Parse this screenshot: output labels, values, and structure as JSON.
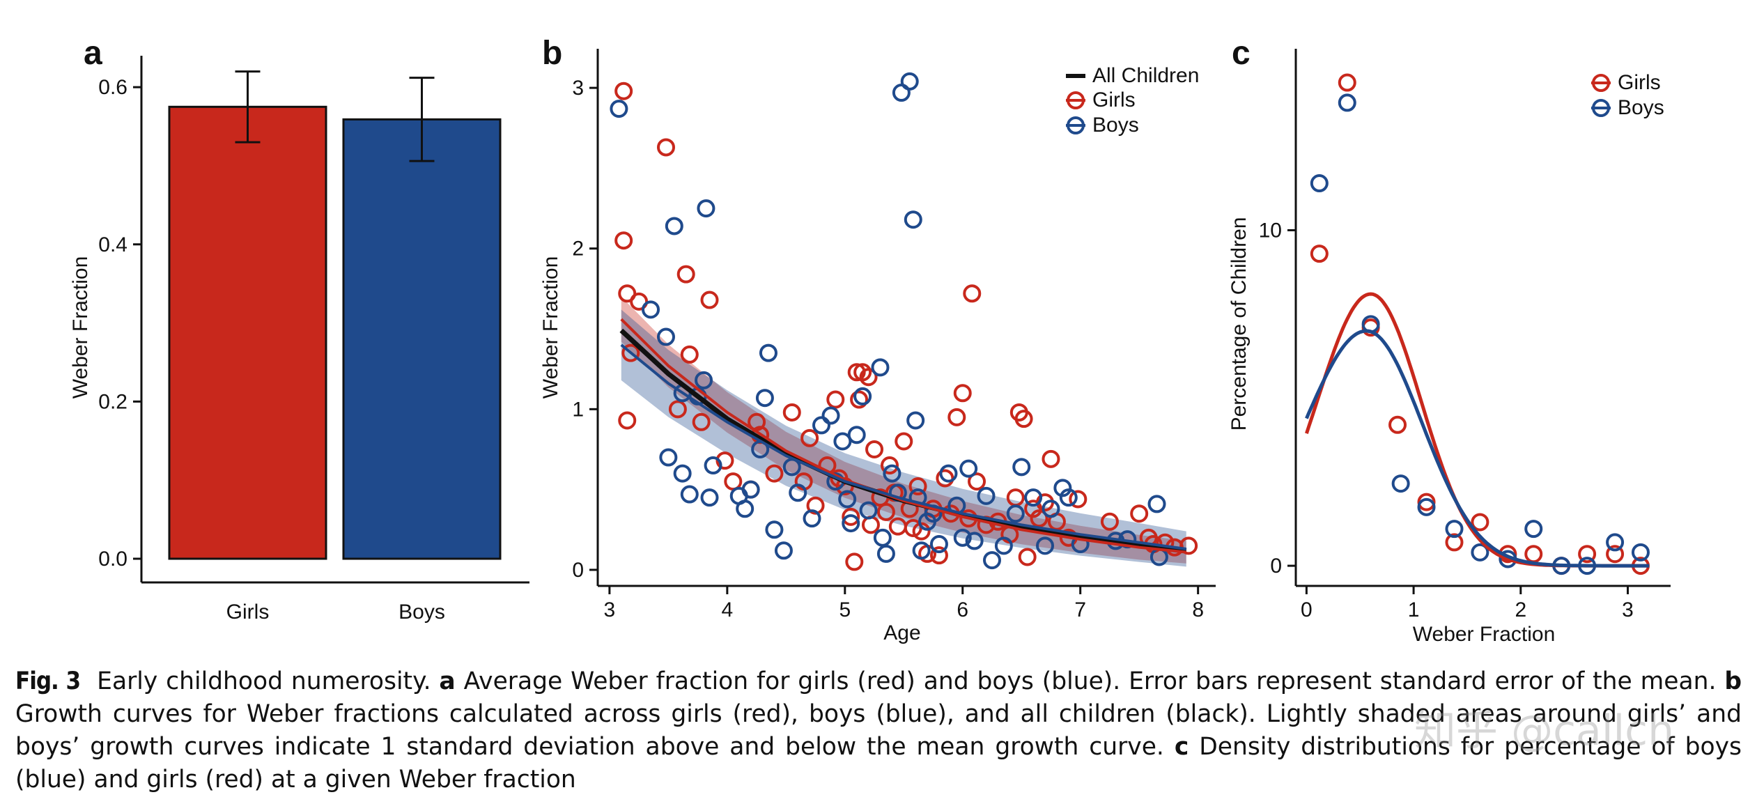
{
  "chart_data": [
    {
      "panel": "a",
      "type": "bar",
      "categories": [
        "Girls",
        "Boys"
      ],
      "values": [
        0.575,
        0.559
      ],
      "errors": [
        0.045,
        0.053
      ],
      "colors": [
        "#c8281c",
        "#1f4a8c"
      ],
      "ylabel": "Weber Fraction",
      "ylim": [
        0,
        0.64
      ],
      "yticks": [
        0.0,
        0.2,
        0.4,
        0.6
      ],
      "ytick_labels": [
        "0.0",
        "0.2",
        "0.4",
        "0.6"
      ]
    },
    {
      "panel": "b",
      "type": "scatter",
      "xlabel": "Age",
      "ylabel": "Weber Fraction",
      "xlim": [
        2.9,
        8.15
      ],
      "ylim": [
        -0.1,
        3.2
      ],
      "xticks": [
        3,
        4,
        5,
        6,
        7,
        8
      ],
      "xtick_labels": [
        "3",
        "4",
        "5",
        "6",
        "7",
        "8"
      ],
      "yticks": [
        0,
        1,
        2,
        3
      ],
      "ytick_labels": [
        "0",
        "1",
        "2",
        "3"
      ],
      "legend": [
        "All Children",
        "Girls",
        "Boys"
      ],
      "curves": [
        {
          "name": "All Children",
          "color": "#111111",
          "x": [
            3.1,
            3.5,
            4.0,
            4.5,
            5.0,
            5.5,
            6.0,
            6.5,
            7.0,
            7.5,
            7.9
          ],
          "y": [
            1.49,
            1.22,
            0.94,
            0.72,
            0.55,
            0.43,
            0.34,
            0.26,
            0.2,
            0.15,
            0.12
          ]
        },
        {
          "name": "Girls",
          "color": "#c8281c",
          "x": [
            3.1,
            3.5,
            4.0,
            4.5,
            5.0,
            5.5,
            6.0,
            6.5,
            7.0,
            7.5,
            7.9
          ],
          "y": [
            1.56,
            1.27,
            0.98,
            0.74,
            0.56,
            0.43,
            0.33,
            0.25,
            0.19,
            0.14,
            0.11
          ],
          "band": 0.14
        },
        {
          "name": "Boys",
          "color": "#1f4a8c",
          "x": [
            3.1,
            3.5,
            4.0,
            4.5,
            5.0,
            5.5,
            6.0,
            6.5,
            7.0,
            7.5,
            7.9
          ],
          "y": [
            1.4,
            1.16,
            0.92,
            0.71,
            0.55,
            0.44,
            0.35,
            0.28,
            0.22,
            0.17,
            0.13
          ],
          "band": 0.22
        }
      ],
      "series": [
        {
          "name": "Girls",
          "color": "#c8281c",
          "points": [
            [
              3.12,
              2.98
            ],
            [
              3.48,
              2.63
            ],
            [
              3.12,
              2.05
            ],
            [
              3.15,
              1.72
            ],
            [
              3.25,
              1.67
            ],
            [
              3.65,
              1.84
            ],
            [
              3.85,
              1.68
            ],
            [
              3.18,
              1.35
            ],
            [
              3.15,
              0.93
            ],
            [
              3.58,
              1.0
            ],
            [
              3.68,
              1.34
            ],
            [
              3.78,
              0.92
            ],
            [
              3.98,
              0.68
            ],
            [
              4.05,
              0.55
            ],
            [
              4.2,
              0.5
            ],
            [
              4.25,
              0.92
            ],
            [
              4.28,
              0.84
            ],
            [
              4.4,
              0.6
            ],
            [
              4.55,
              0.98
            ],
            [
              4.65,
              0.55
            ],
            [
              4.7,
              0.82
            ],
            [
              4.75,
              0.4
            ],
            [
              4.85,
              0.65
            ],
            [
              4.92,
              1.06
            ],
            [
              4.95,
              0.57
            ],
            [
              5.0,
              0.52
            ],
            [
              5.05,
              0.33
            ],
            [
              5.08,
              0.05
            ],
            [
              5.1,
              1.23
            ],
            [
              5.12,
              1.06
            ],
            [
              5.15,
              1.23
            ],
            [
              5.2,
              1.2
            ],
            [
              5.22,
              0.28
            ],
            [
              5.25,
              0.75
            ],
            [
              5.3,
              0.45
            ],
            [
              5.35,
              0.36
            ],
            [
              5.38,
              0.65
            ],
            [
              5.42,
              0.48
            ],
            [
              5.45,
              0.27
            ],
            [
              5.5,
              0.8
            ],
            [
              5.55,
              0.38
            ],
            [
              5.58,
              0.26
            ],
            [
              5.62,
              0.52
            ],
            [
              5.65,
              0.24
            ],
            [
              5.7,
              0.1
            ],
            [
              5.75,
              0.38
            ],
            [
              5.8,
              0.09
            ],
            [
              5.85,
              0.57
            ],
            [
              5.9,
              0.35
            ],
            [
              5.95,
              0.95
            ],
            [
              6.0,
              1.1
            ],
            [
              6.05,
              0.32
            ],
            [
              6.08,
              1.72
            ],
            [
              6.12,
              0.55
            ],
            [
              6.2,
              0.28
            ],
            [
              6.3,
              0.3
            ],
            [
              6.4,
              0.22
            ],
            [
              6.45,
              0.45
            ],
            [
              6.48,
              0.98
            ],
            [
              6.52,
              0.94
            ],
            [
              6.55,
              0.08
            ],
            [
              6.6,
              0.38
            ],
            [
              6.65,
              0.32
            ],
            [
              6.7,
              0.42
            ],
            [
              6.75,
              0.69
            ],
            [
              6.8,
              0.3
            ],
            [
              6.9,
              0.2
            ],
            [
              6.98,
              0.44
            ],
            [
              7.25,
              0.3
            ],
            [
              7.5,
              0.35
            ],
            [
              7.58,
              0.2
            ],
            [
              7.62,
              0.16
            ],
            [
              7.72,
              0.17
            ],
            [
              7.8,
              0.14
            ],
            [
              7.92,
              0.15
            ]
          ]
        },
        {
          "name": "Boys",
          "color": "#1f4a8c",
          "points": [
            [
              3.08,
              2.87
            ],
            [
              3.55,
              2.14
            ],
            [
              3.82,
              2.25
            ],
            [
              3.35,
              1.62
            ],
            [
              3.48,
              1.45
            ],
            [
              3.62,
              1.1
            ],
            [
              3.75,
              1.08
            ],
            [
              3.8,
              1.18
            ],
            [
              3.5,
              0.7
            ],
            [
              3.62,
              0.6
            ],
            [
              3.68,
              0.47
            ],
            [
              3.85,
              0.45
            ],
            [
              3.88,
              0.65
            ],
            [
              4.1,
              0.46
            ],
            [
              4.15,
              0.38
            ],
            [
              4.2,
              0.5
            ],
            [
              4.28,
              0.75
            ],
            [
              4.32,
              1.07
            ],
            [
              4.35,
              1.35
            ],
            [
              4.4,
              0.25
            ],
            [
              4.48,
              0.12
            ],
            [
              4.55,
              0.64
            ],
            [
              4.6,
              0.48
            ],
            [
              4.72,
              0.32
            ],
            [
              4.8,
              0.9
            ],
            [
              4.88,
              0.96
            ],
            [
              4.92,
              0.55
            ],
            [
              4.98,
              0.8
            ],
            [
              5.02,
              0.44
            ],
            [
              5.05,
              0.29
            ],
            [
              5.1,
              0.84
            ],
            [
              5.15,
              1.08
            ],
            [
              5.2,
              0.37
            ],
            [
              5.3,
              1.26
            ],
            [
              5.32,
              0.2
            ],
            [
              5.35,
              0.1
            ],
            [
              5.4,
              0.6
            ],
            [
              5.45,
              0.48
            ],
            [
              5.48,
              2.97
            ],
            [
              5.55,
              3.04
            ],
            [
              5.58,
              2.18
            ],
            [
              5.6,
              0.93
            ],
            [
              5.62,
              0.45
            ],
            [
              5.65,
              0.12
            ],
            [
              5.7,
              0.3
            ],
            [
              5.75,
              0.35
            ],
            [
              5.8,
              0.16
            ],
            [
              5.88,
              0.6
            ],
            [
              5.95,
              0.4
            ],
            [
              6.0,
              0.2
            ],
            [
              6.05,
              0.63
            ],
            [
              6.1,
              0.18
            ],
            [
              6.2,
              0.46
            ],
            [
              6.25,
              0.06
            ],
            [
              6.35,
              0.15
            ],
            [
              6.45,
              0.35
            ],
            [
              6.5,
              0.64
            ],
            [
              6.6,
              0.45
            ],
            [
              6.7,
              0.15
            ],
            [
              6.75,
              0.38
            ],
            [
              6.85,
              0.51
            ],
            [
              6.9,
              0.45
            ],
            [
              7.0,
              0.16
            ],
            [
              7.3,
              0.18
            ],
            [
              7.4,
              0.19
            ],
            [
              7.65,
              0.41
            ],
            [
              7.67,
              0.08
            ]
          ]
        }
      ]
    },
    {
      "panel": "c",
      "type": "line",
      "xlabel": "Weber Fraction",
      "ylabel": "Percentage of Children",
      "xlim": [
        -0.1,
        3.4
      ],
      "ylim": [
        -0.6,
        15.2
      ],
      "xticks": [
        0,
        1,
        2,
        3
      ],
      "xtick_labels": [
        "0",
        "1",
        "2",
        "3"
      ],
      "yticks": [
        0,
        10
      ],
      "ytick_labels": [
        "0",
        "10"
      ],
      "legend": [
        "Girls",
        "Boys"
      ],
      "series": [
        {
          "name": "Girls",
          "color": "#c8281c",
          "curve": {
            "peak_x": 0.6,
            "peak_y": 8.1,
            "sigma_left": 0.5,
            "sigma_right": 0.47,
            "x_start": 0.0,
            "x_end": 3.2
          },
          "points": [
            [
              0.12,
              9.3
            ],
            [
              0.38,
              14.4
            ],
            [
              0.6,
              7.1
            ],
            [
              0.85,
              4.2
            ],
            [
              1.12,
              1.9
            ],
            [
              1.38,
              0.7
            ],
            [
              1.62,
              1.3
            ],
            [
              1.88,
              0.35
            ],
            [
              2.12,
              0.35
            ],
            [
              2.38,
              0.0
            ],
            [
              2.62,
              0.35
            ],
            [
              2.88,
              0.35
            ],
            [
              3.12,
              0.0
            ]
          ]
        },
        {
          "name": "Boys",
          "color": "#1f4a8c",
          "curve": {
            "peak_x": 0.56,
            "peak_y": 7.0,
            "sigma_left": 0.58,
            "sigma_right": 0.52,
            "x_start": 0.0,
            "x_end": 3.2
          },
          "points": [
            [
              0.12,
              11.4
            ],
            [
              0.38,
              13.8
            ],
            [
              0.6,
              7.2
            ],
            [
              0.88,
              2.45
            ],
            [
              1.12,
              1.75
            ],
            [
              1.38,
              1.1
            ],
            [
              1.62,
              0.4
            ],
            [
              1.88,
              0.2
            ],
            [
              2.12,
              1.1
            ],
            [
              2.38,
              0.0
            ],
            [
              2.62,
              0.0
            ],
            [
              2.88,
              0.7
            ],
            [
              3.12,
              0.4
            ]
          ]
        }
      ]
    }
  ],
  "panels": {
    "a": {
      "label": "a"
    },
    "b": {
      "label": "b"
    },
    "c": {
      "label": "c"
    }
  },
  "caption": {
    "fig_label": "Fig. 3",
    "title": "Early childhood numerosity.",
    "a_label": "a",
    "a_text": "Average Weber fraction for girls (red) and boys (blue). Error bars represent standard error of the mean.",
    "b_label": "b",
    "b_text": "Growth curves for Weber fractions calculated across girls (red), boys (blue), and all children (black). Lightly shaded areas around girls’ and boys’ growth curves indicate 1 standard deviation above and below the mean growth curve.",
    "c_label": "c",
    "c_text": "Density distributions for percentage of boys (blue) and girls (red) at a given Weber fraction"
  },
  "watermark": "知乎 @callch"
}
